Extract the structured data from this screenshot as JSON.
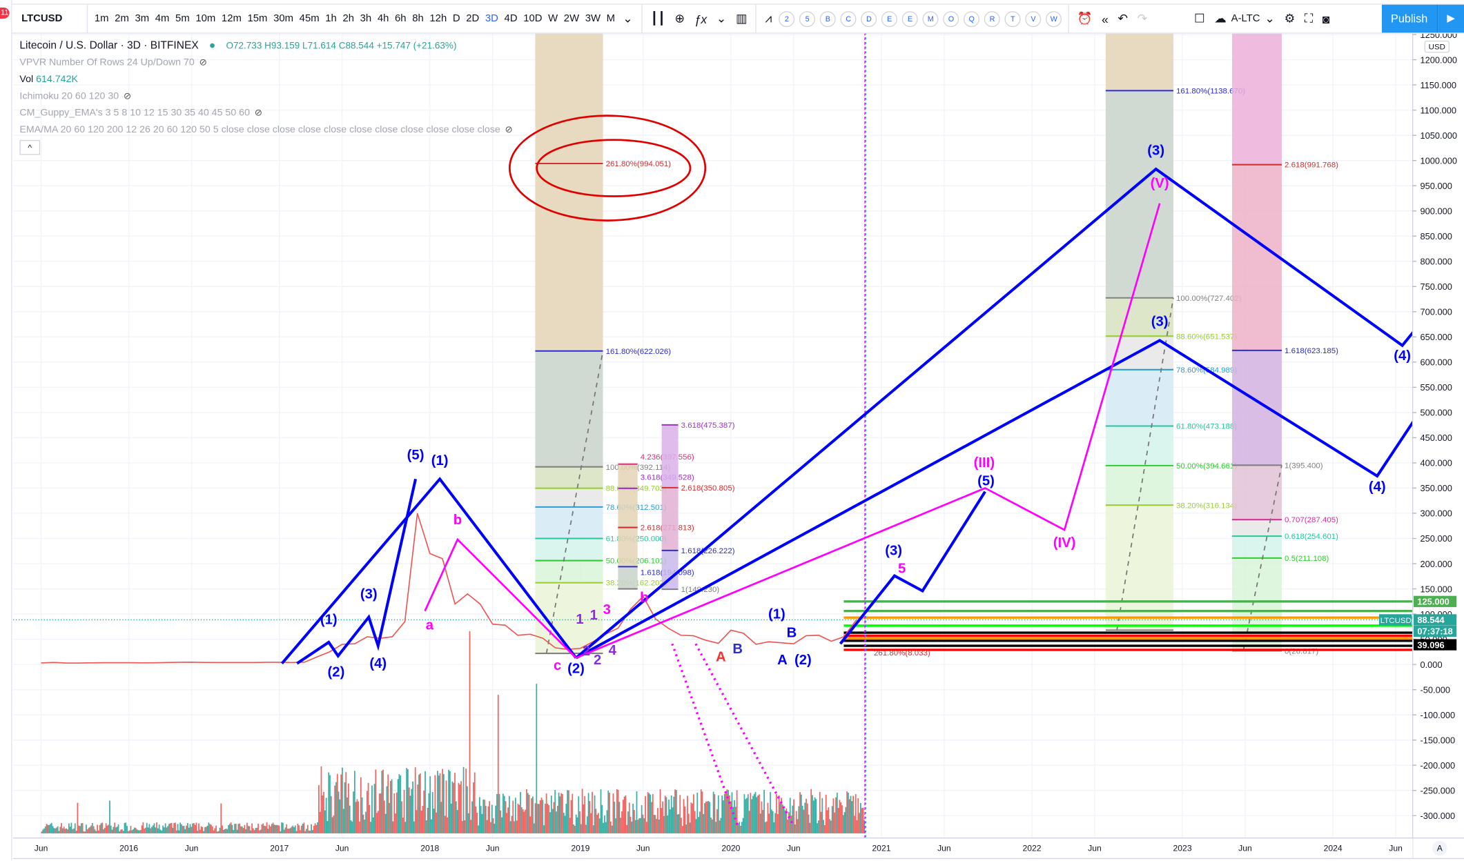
{
  "notifications_badge": "11",
  "toolbar": {
    "symbol": "LTCUSD",
    "intervals": [
      "1m",
      "2m",
      "3m",
      "4m",
      "5m",
      "10m",
      "12m",
      "15m",
      "30m",
      "45m",
      "1h",
      "2h",
      "3h",
      "4h",
      "6h",
      "8h",
      "12h",
      "D",
      "2D",
      "3D",
      "4D",
      "10D",
      "W",
      "2W",
      "3W",
      "M"
    ],
    "active_interval": "3D",
    "study_letters": [
      "2",
      "5",
      "B",
      "C",
      "D",
      "E",
      "E",
      "M",
      "O",
      "Q",
      "R",
      "T",
      "V",
      "W"
    ],
    "layout_name": "A-LTC",
    "publish_label": "Publish",
    "icons": [
      "candles-icon",
      "add-compare-icon",
      "indicators-fx-icon",
      "bar-chart-icon",
      "strategy-icon",
      "alert-icon",
      "replay-icon",
      "undo-icon",
      "redo-icon",
      "layout-square-icon",
      "cloud-icon",
      "settings-icon",
      "fullscreen-icon",
      "camera-icon",
      "play-icon"
    ]
  },
  "legend": {
    "title": "Litecoin / U.S. Dollar · 3D · BITFINEX",
    "open": "O72.733",
    "high": "H93.159",
    "low": "L71.614",
    "close": "C88.544",
    "change": "+15.747 (+21.63%)",
    "vpvr": "VPVR Number Of Rows 24 Up/Down 70",
    "vol_label": "Vol",
    "vol_value": "614.742K",
    "ichimoku": "Ichimoku 20 60 120 30",
    "guppy": "CM_Guppy_EMA's 3 5 8 10 12 15 30 35 40 45 50 60",
    "emama": "EMA/MA 20 60 120 200 12 26 20 60 120 50 5 close close close close close close close close close close close",
    "collapse_icon": "chevron-up-icon"
  },
  "price_axis": {
    "currency": "USD",
    "ticks": [
      1250,
      1200,
      1150,
      1100,
      1050,
      1000,
      950,
      900,
      850,
      800,
      750,
      700,
      650,
      600,
      550,
      500,
      450,
      400,
      350,
      300,
      250,
      200,
      150,
      100,
      50,
      0,
      -50,
      -100,
      -150,
      -200,
      -250,
      -300
    ],
    "tick_format": "0.000",
    "badges": [
      {
        "text": "125.000",
        "price": 125,
        "color": "#4caf50"
      },
      {
        "text": "88.544",
        "label": "LTCUSD",
        "price": 88.544,
        "color": "#26a69a"
      },
      {
        "text": "07:37:18",
        "price": 66,
        "color": "#26a69a"
      },
      {
        "text": "39.096",
        "price": 39.096,
        "color": "#000000"
      }
    ],
    "auto_label": "A"
  },
  "time_axis": {
    "labels": [
      {
        "text": "Jun",
        "t": 2015.417
      },
      {
        "text": "2016",
        "t": 2016
      },
      {
        "text": "Jun",
        "t": 2016.417
      },
      {
        "text": "2017",
        "t": 2017
      },
      {
        "text": "Jun",
        "t": 2017.417
      },
      {
        "text": "2018",
        "t": 2018
      },
      {
        "text": "Jun",
        "t": 2018.417
      },
      {
        "text": "2019",
        "t": 2019
      },
      {
        "text": "Jun",
        "t": 2019.417
      },
      {
        "text": "2020",
        "t": 2020
      },
      {
        "text": "Jun",
        "t": 2020.417
      },
      {
        "text": "2021",
        "t": 2021
      },
      {
        "text": "Jun",
        "t": 2021.417
      },
      {
        "text": "2022",
        "t": 2022
      },
      {
        "text": "Jun",
        "t": 2022.417
      },
      {
        "text": "2023",
        "t": 2023
      },
      {
        "text": "Jun",
        "t": 2023.417
      },
      {
        "text": "2024",
        "t": 2024
      },
      {
        "text": "Jun",
        "t": 2024.417
      }
    ]
  },
  "chart_data": {
    "type": "line",
    "symbol": "LTCUSD",
    "interval": "3D",
    "y_range": [
      -300,
      1250
    ],
    "x_range": [
      2015.3,
      2024.6
    ],
    "last_price": 88.544,
    "up_color": "#26a69a",
    "down_color": "#ef5350",
    "price_start": 2015.417,
    "price_step_months": 1,
    "price": [
      3,
      4,
      2.8,
      2.9,
      3.2,
      3.5,
      3.5,
      3.5,
      3.2,
      3.3,
      3.8,
      4.3,
      4.6,
      4.1,
      3.8,
      3.9,
      3.9,
      3.9,
      4.3,
      4.3,
      3.8,
      4.5,
      15,
      25,
      40,
      41,
      55,
      52,
      55,
      85,
      300,
      220,
      210,
      120,
      140,
      120,
      80,
      78,
      58,
      60,
      52,
      33,
      30,
      32,
      45,
      60,
      72,
      110,
      135,
      90,
      72,
      58,
      57,
      48,
      42,
      68,
      62,
      40,
      45,
      43,
      41,
      57,
      58,
      46,
      55,
      88.544
    ],
    "fibs": [
      {
        "t0": 2018.7,
        "t1": 2019.15,
        "top_fill": "#e3d3b5",
        "levels": [
          {
            "p": 994.051,
            "label": "261.80%(994.051)",
            "color": "#d32f2f",
            "fill": "#e3d3b5"
          },
          {
            "p": 622.026,
            "label": "161.80%(622.026)",
            "color": "#2c2cd0",
            "fill": "#c9d4ca"
          },
          {
            "p": 392.114,
            "label": "100.00%(392.114)",
            "color": "#808080",
            "fill": "#d8e2c0"
          },
          {
            "p": 349.703,
            "label": "88.60%(349.703)",
            "color": "#9acd32",
            "fill": "#e6e6e6"
          },
          {
            "p": 312.501,
            "label": "78.60%(312.501)",
            "color": "#2e9bd6",
            "fill": "#d3e9f5"
          },
          {
            "p": 250.0,
            "label": "61.80%(250.000)",
            "color": "#26c69a",
            "fill": "#d4f3ea"
          },
          {
            "p": 206.101,
            "label": "50.00%(206.101)",
            "color": "#2ecc2e",
            "fill": "#d8f3d8"
          },
          {
            "p": 162.202,
            "label": "38.20%(162.202)",
            "color": "#9acd32",
            "fill": "#eaf3d6"
          },
          {
            "p": 22,
            "label": "",
            "color": "#808080",
            "fill": null
          }
        ]
      },
      {
        "t0": 2022.49,
        "t1": 2022.94,
        "top_fill": "#e3d3b5",
        "levels": [
          {
            "p": 1138.67,
            "label": "161.80%(1138.670)",
            "color": "#2c2cd0",
            "fill": "#c9d4ca"
          },
          {
            "p": 727.402,
            "label": "100.00%(727.402)",
            "color": "#808080",
            "fill": "#d8e2c0"
          },
          {
            "p": 651.537,
            "label": "88.60%(651.537)",
            "color": "#9acd32",
            "fill": "#e6e6e6"
          },
          {
            "p": 584.989,
            "label": "78.60%(584.989)",
            "color": "#2e9bd6",
            "fill": "#d3e9f5"
          },
          {
            "p": 473.188,
            "label": "61.80%(473.188)",
            "color": "#26c69a",
            "fill": "#d4f3ea"
          },
          {
            "p": 394.661,
            "label": "50.00%(394.661)",
            "color": "#2ecc2e",
            "fill": "#d8f3d8"
          },
          {
            "p": 316.134,
            "label": "38.20%(316.134)",
            "color": "#9acd32",
            "fill": "#eaf3d6"
          },
          {
            "p": 68,
            "label": "",
            "color": "#808080",
            "fill": null
          }
        ]
      },
      {
        "t0": 2023.33,
        "t1": 2023.66,
        "top_fill": "#ecb0da",
        "levels": [
          {
            "p": 991.768,
            "label": "2.618(991.768)",
            "color": "#d32f2f",
            "fill": "#ecb0c8"
          },
          {
            "p": 623.185,
            "label": "1.618(623.185)",
            "color": "#2c2cd0",
            "fill": "#d3b2e0"
          },
          {
            "p": 395.4,
            "label": "1(395.400)",
            "color": "#808080",
            "fill": "#e2c2d6"
          },
          {
            "p": 287.405,
            "label": "0.707(287.405)",
            "color": "#d62f9a",
            "fill": "#e6e6e6"
          },
          {
            "p": 254.601,
            "label": "0.618(254.601)",
            "color": "#26c69a",
            "fill": "#d4f3ea"
          },
          {
            "p": 211.108,
            "label": "0.5(211.108)",
            "color": "#2ecc2e",
            "fill": "#d8f3d8"
          },
          {
            "p": 26.817,
            "label": "0(26.817)",
            "color": "#808080",
            "fill": null
          }
        ]
      },
      {
        "t0": 2019.25,
        "t1": 2019.38,
        "top_fill": null,
        "levels": [
          {
            "p": 397.556,
            "label": "4.236(397.556)",
            "color": "#d62f7a",
            "fill": "#e3d3b5"
          },
          {
            "p": 349.528,
            "label": "3.618(349.528)",
            "color": "#9b30c8",
            "fill": "#e3d3b5"
          },
          {
            "p": 271.813,
            "label": "2.618(271.813)",
            "color": "#d32f2f",
            "fill": "#e3d3b5"
          },
          {
            "p": 194.098,
            "label": "1.618(194.098)",
            "color": "#2c2cd0",
            "fill": "#c9d4ca"
          },
          {
            "p": 149.97,
            "label": "",
            "color": "#808080",
            "fill": null
          }
        ]
      },
      {
        "t0": 2019.54,
        "t1": 2019.65,
        "top_fill": null,
        "levels": [
          {
            "p": 475.387,
            "label": "3.618(475.387)",
            "color": "#9b30c8",
            "fill": "#d9b0ea"
          },
          {
            "p": 350.805,
            "label": "2.618(350.805)",
            "color": "#d32f2f",
            "fill": "#e2b0d4"
          },
          {
            "p": 226.222,
            "label": "1.618(226.222)",
            "color": "#2c2cd0",
            "fill": "#c9b8ea"
          },
          {
            "p": 149.23,
            "label": "1(149.230)",
            "color": "#808080",
            "fill": null
          }
        ]
      }
    ],
    "wave_lines": [
      {
        "color": "#0000ff",
        "dash": false,
        "pts": [
          [
            2017.017,
            2
          ],
          [
            2018.066,
            368
          ],
          [
            2018.971,
            13
          ]
        ]
      },
      {
        "color": "#0000ff",
        "dash": false,
        "pts": [
          [
            2017.117,
            2
          ],
          [
            2017.328,
            44
          ],
          [
            2017.39,
            17
          ],
          [
            2017.594,
            94
          ],
          [
            2017.656,
            37
          ],
          [
            2017.905,
            368
          ]
        ]
      },
      {
        "color": "#0000ff",
        "dash": false,
        "pts": [
          [
            2018.971,
            13
          ],
          [
            2022.824,
            983
          ],
          [
            2024.461,
            633
          ],
          [
            2024.554,
            667
          ]
        ]
      },
      {
        "color": "#0000ff",
        "dash": false,
        "pts": [
          [
            2018.971,
            13
          ],
          [
            2022.849,
            643
          ],
          [
            2024.294,
            374
          ],
          [
            2024.554,
            491
          ]
        ]
      },
      {
        "color": "#0000ff",
        "dash": false,
        "pts": [
          [
            2020.727,
            41
          ],
          [
            2021.087,
            176
          ],
          [
            2021.273,
            146
          ],
          [
            2021.689,
            343
          ]
        ]
      },
      {
        "color": "#ff00ff",
        "dash": false,
        "pts": [
          [
            2018.971,
            13
          ],
          [
            2021.689,
            350
          ],
          [
            2022.216,
            267
          ],
          [
            2022.849,
            915
          ]
        ]
      },
      {
        "color": "#ff00ff",
        "dash": false,
        "pts": [
          [
            2017.967,
            106
          ],
          [
            2018.184,
            248
          ],
          [
            2018.971,
            13
          ]
        ]
      },
      {
        "color": "#ff00ff",
        "dash": true,
        "pts": [
          [
            2019.61,
            41
          ],
          [
            2020.045,
            -320
          ]
        ]
      },
      {
        "color": "#ff00ff",
        "dash": true,
        "pts": [
          [
            2019.766,
            41
          ],
          [
            2020.417,
            -320
          ]
        ]
      }
    ],
    "wave_labels": [
      {
        "text": "(5)",
        "t": 2017.905,
        "p": 407,
        "color": "#0000ff"
      },
      {
        "text": "(1)",
        "t": 2018.066,
        "p": 396,
        "color": "#0000ff"
      },
      {
        "text": "(1)",
        "t": 2017.328,
        "p": 80,
        "color": "#0000ff"
      },
      {
        "text": "(2)",
        "t": 2017.377,
        "p": -24,
        "color": "#0000ff"
      },
      {
        "text": "(3)",
        "t": 2017.594,
        "p": 131,
        "color": "#0000ff"
      },
      {
        "text": "(4)",
        "t": 2017.656,
        "p": -7,
        "color": "#0000ff"
      },
      {
        "text": "a",
        "t": 2017.998,
        "p": 69,
        "color": "#ff00ff"
      },
      {
        "text": "b",
        "t": 2018.184,
        "p": 278,
        "color": "#ff00ff"
      },
      {
        "text": "c",
        "t": 2018.848,
        "p": -11,
        "color": "#ff00ff"
      },
      {
        "text": "(2)",
        "t": 2018.971,
        "p": -17,
        "color": "#0000ff"
      },
      {
        "text": "1",
        "t": 2018.996,
        "p": 81,
        "color": "#8a2be2"
      },
      {
        "text": "1",
        "t": 2019.089,
        "p": 89,
        "color": "#8a2be2"
      },
      {
        "text": "3",
        "t": 2019.176,
        "p": 100,
        "color": "#ff00ff"
      },
      {
        "text": "2",
        "t": 2019.04,
        "p": -4,
        "color": "#8a2be2"
      },
      {
        "text": "2",
        "t": 2019.114,
        "p": 0,
        "color": "#8a2be2"
      },
      {
        "text": "4",
        "t": 2019.213,
        "p": 19,
        "color": "#8a2be2"
      },
      {
        "text": "b",
        "t": 2019.424,
        "p": 187,
        "color": "#ff00ff"
      },
      {
        "text": "(1)",
        "t": 2020.305,
        "p": 91,
        "color": "#0000ff"
      },
      {
        "text": "B",
        "t": 2020.404,
        "p": 91,
        "color": "#0000ff"
      },
      {
        "text": "A",
        "t": 2020.342,
        "p": 0,
        "color": "#0000ff"
      },
      {
        "text": "(2)",
        "t": 2020.479,
        "p": 0,
        "color": "#0000ff"
      },
      {
        "text": "A",
        "t": 2019.933,
        "p": 6,
        "color": "#ff3030"
      },
      {
        "text": "B",
        "t": 2020.045,
        "p": 22,
        "color": "#2c2cd0"
      },
      {
        "text": "(3)",
        "t": 2021.081,
        "p": 217,
        "color": "#0000ff"
      },
      {
        "text": "5",
        "t": 2021.136,
        "p": 204,
        "color": "#ff00ff"
      },
      {
        "text": "(III)",
        "t": 2021.683,
        "p": 392,
        "color": "#ff00ff"
      },
      {
        "text": "(5)",
        "t": 2021.695,
        "p": 374,
        "color": "#0000ff"
      },
      {
        "text": "(IV)",
        "t": 2022.216,
        "p": 233,
        "color": "#ff00ff"
      },
      {
        "text": "(3)",
        "t": 2022.824,
        "p": 1011,
        "color": "#0000ff"
      },
      {
        "text": "(V)",
        "t": 2022.849,
        "p": 946,
        "color": "#ff00ff"
      },
      {
        "text": "(3)",
        "t": 2022.849,
        "p": 672,
        "color": "#0000ff"
      },
      {
        "text": "(4)",
        "t": 2024.461,
        "p": 604,
        "color": "#0000ff"
      },
      {
        "text": "(4)",
        "t": 2024.294,
        "p": 344,
        "color": "#0000ff"
      },
      {
        "text": "261.80%(8.033)",
        "t": 2020.95,
        "p": 18,
        "color": "#d32f2f"
      }
    ],
    "ellipses": [
      {
        "t": 2019.18,
        "p": 985,
        "rt": 0.65,
        "rp": 104,
        "color": "#e00000"
      },
      {
        "t": 2019.22,
        "p": 985,
        "rt": 0.51,
        "rp": 56,
        "color": "#e00000"
      }
    ],
    "h_levels": [
      {
        "p": 125,
        "color": "#4caf50"
      },
      {
        "p": 106,
        "color": "#4caf50"
      },
      {
        "p": 93,
        "color": "#ff9800"
      },
      {
        "p": 77,
        "color": "#00ff00"
      },
      {
        "p": 63,
        "color": "#000000"
      },
      {
        "p": 57,
        "color": "#ff0000"
      },
      {
        "p": 52,
        "color": "#ff9800"
      },
      {
        "p": 47,
        "color": "#000000"
      },
      {
        "p": 37,
        "color": "#000000"
      },
      {
        "p": 29,
        "color": "#ff0000"
      }
    ],
    "h_levels_start": 2020.75,
    "cursor_time": 2020.89
  }
}
